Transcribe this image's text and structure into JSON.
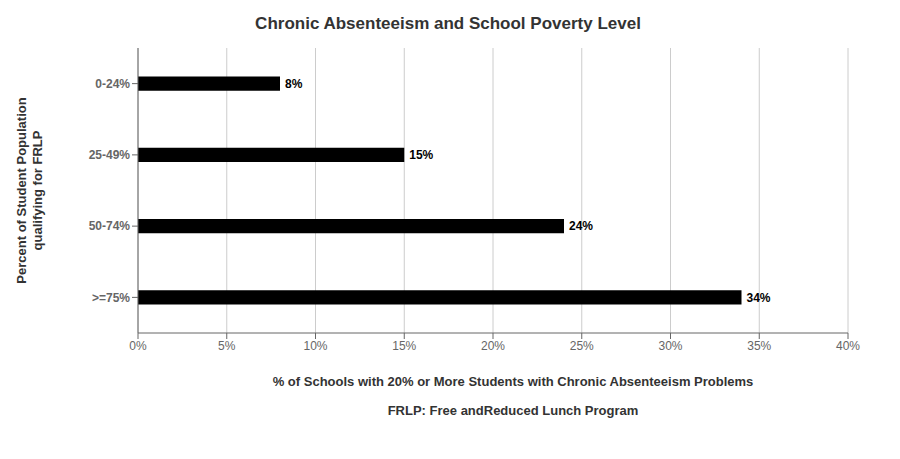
{
  "chart_data": {
    "type": "bar",
    "orientation": "horizontal",
    "title": "Chronic Absenteeism and School Poverty Level",
    "categories": [
      ">=75%",
      "50-74%",
      "25-49%",
      "0-24%"
    ],
    "values": [
      34,
      24,
      15,
      8
    ],
    "value_labels": [
      "34%",
      "24%",
      "15%",
      "8%"
    ],
    "data_labels": true,
    "color": "#000000",
    "xlabel": "% of Schools with 20% or More Students with Chronic Absenteeism Problems",
    "ylabel": "Percent of Student Population\nqualifying for FRLP",
    "annotations": [
      "FRLP: Free andReduced Lunch Program"
    ],
    "xlim": [
      0,
      40
    ],
    "xticks": [
      {
        "value": 0,
        "label": "0%"
      },
      {
        "value": 5,
        "label": "5%"
      },
      {
        "value": 10,
        "label": "10%"
      },
      {
        "value": 15,
        "label": "15%"
      },
      {
        "value": 20,
        "label": "20%"
      },
      {
        "value": 25,
        "label": "25%"
      },
      {
        "value": 30,
        "label": "30%"
      },
      {
        "value": 35,
        "label": "35%"
      },
      {
        "value": 40,
        "label": "40%"
      }
    ],
    "grid": true
  }
}
